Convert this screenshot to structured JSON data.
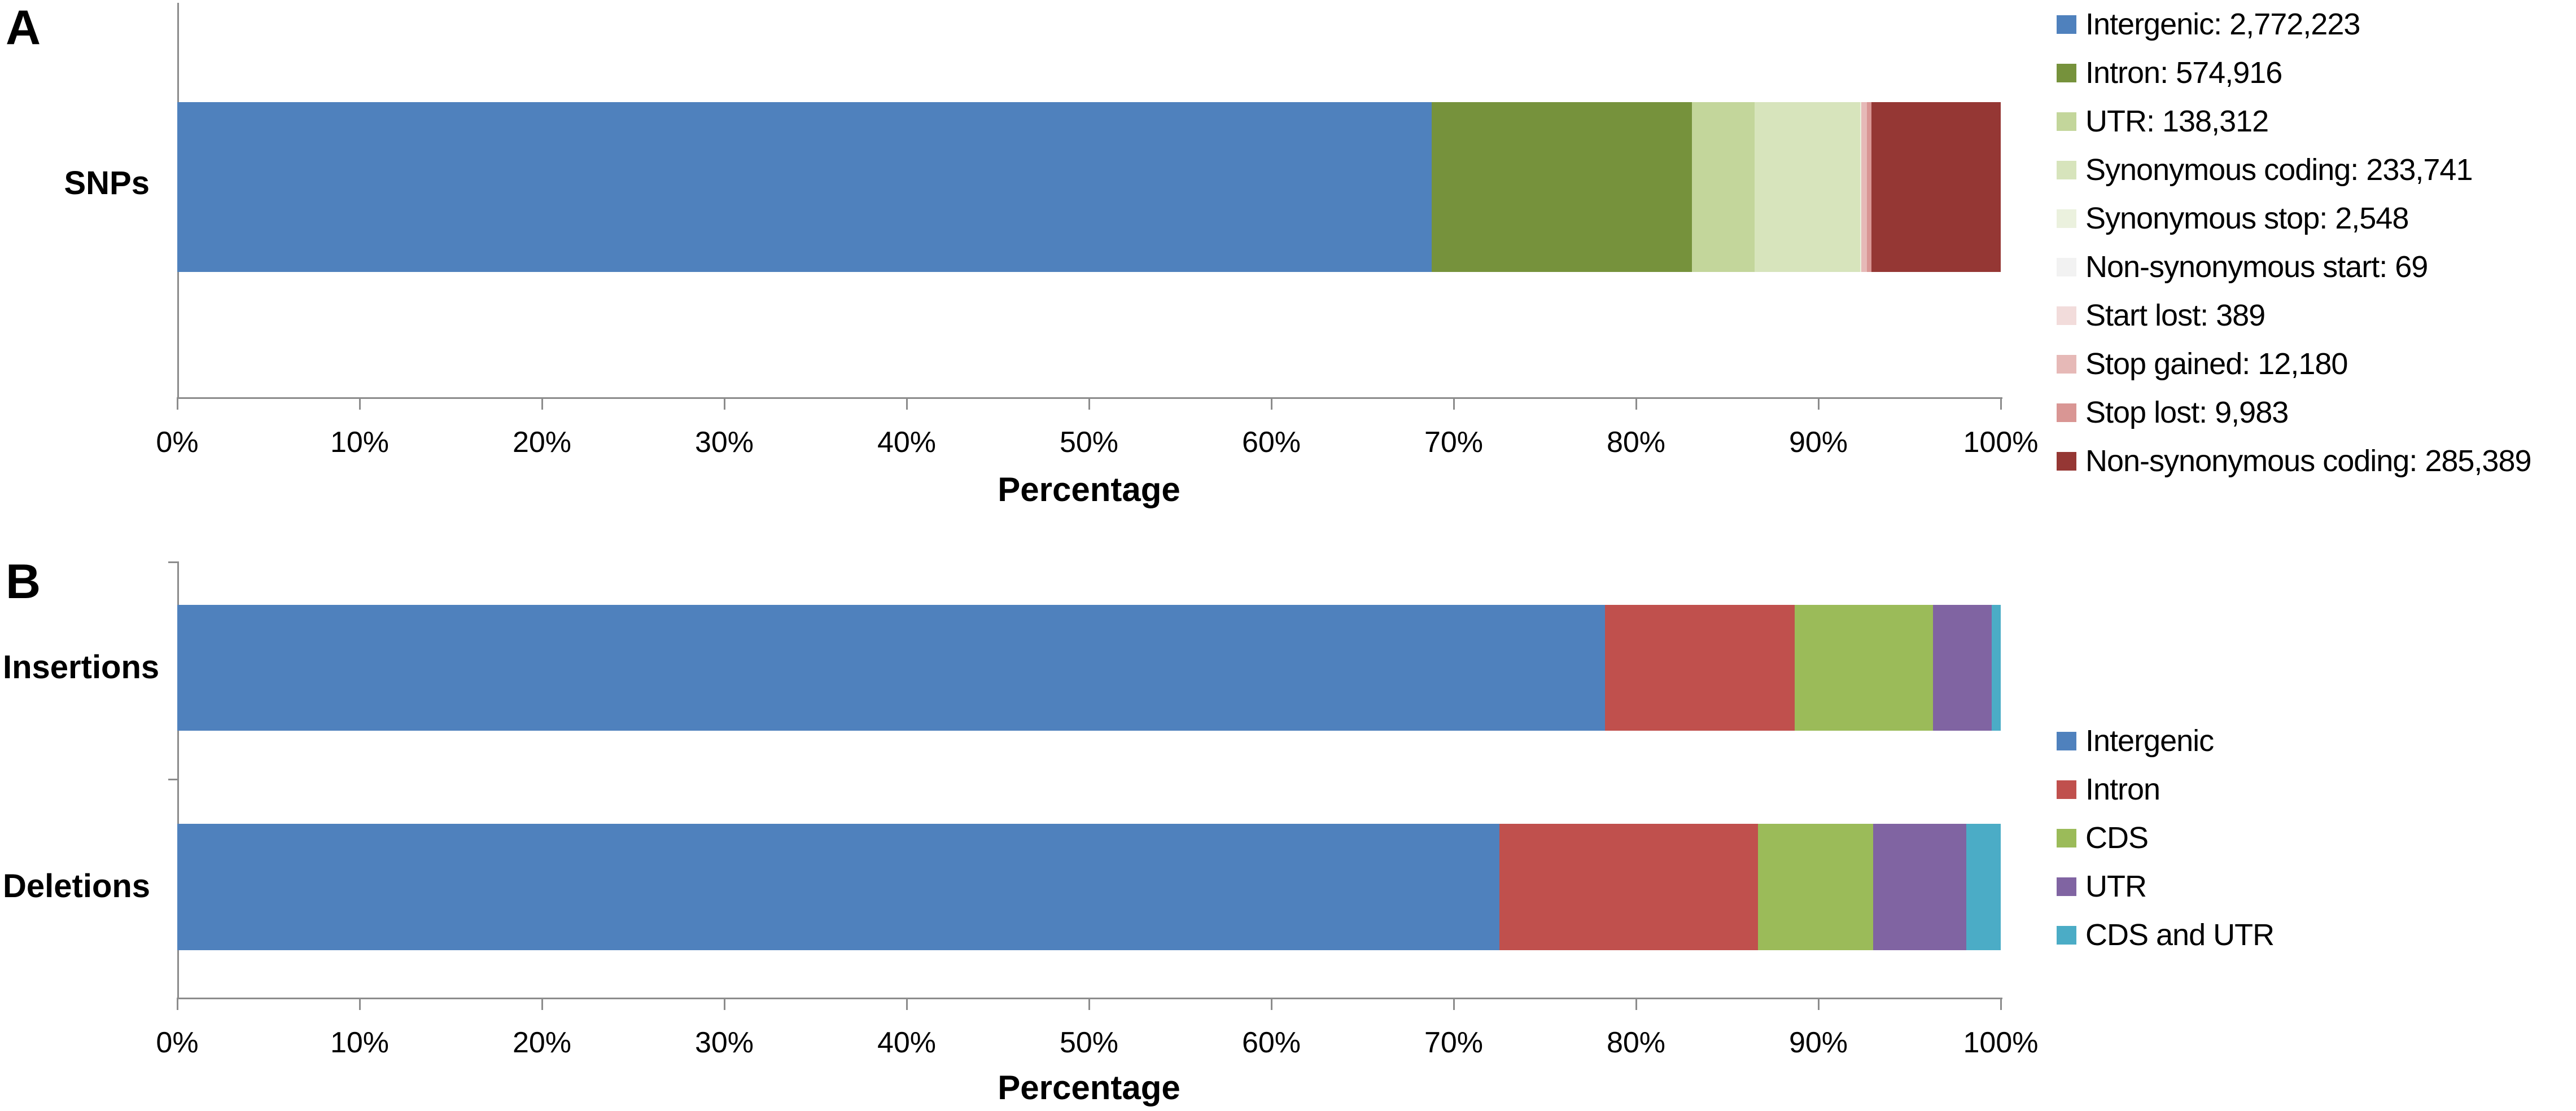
{
  "panels": [
    {
      "letter": "A",
      "rows": [
        "SNPs"
      ],
      "xlabel": "Percentage"
    },
    {
      "letter": "B",
      "rows": [
        "Insertions",
        "Deletions"
      ],
      "xlabel": "Percentage"
    }
  ],
  "chart_data": [
    {
      "type": "bar",
      "orientation": "horizontal",
      "stacked": true,
      "panel": "A",
      "categories": [
        "SNPs"
      ],
      "xlabel": "Percentage",
      "x_tick_labels": [
        "0%",
        "10%",
        "20%",
        "30%",
        "40%",
        "50%",
        "60%",
        "70%",
        "80%",
        "90%",
        "100%"
      ],
      "xlim_percent": [
        0,
        100
      ],
      "grid": false,
      "legend_position": "right",
      "series": [
        {
          "name": "Intergenic",
          "count": 2772223,
          "color": "#4F81BD",
          "values_percent": [
            68.79
          ]
        },
        {
          "name": "Intron",
          "count": 574916,
          "color": "#76923C",
          "values_percent": [
            14.27
          ]
        },
        {
          "name": "UTR",
          "count": 138312,
          "color": "#C3D69B",
          "values_percent": [
            3.43
          ]
        },
        {
          "name": "Synonymous coding",
          "count": 233741,
          "color": "#D7E4BC",
          "values_percent": [
            5.8
          ]
        },
        {
          "name": "Synonymous stop",
          "count": 2548,
          "color": "#EBF1DE",
          "values_percent": [
            0.063
          ]
        },
        {
          "name": "Non-synonymous start",
          "count": 69,
          "color": "#F2F2F2",
          "values_percent": [
            0.002
          ]
        },
        {
          "name": "Start lost",
          "count": 389,
          "color": "#F2DCDB",
          "values_percent": [
            0.01
          ]
        },
        {
          "name": "Stop gained",
          "count": 12180,
          "color": "#E6B9B7",
          "values_percent": [
            0.302
          ]
        },
        {
          "name": "Stop lost",
          "count": 9983,
          "color": "#D99694",
          "values_percent": [
            0.248
          ]
        },
        {
          "name": "Non-synonymous coding",
          "count": 285389,
          "color": "#953734",
          "values_percent": [
            7.08
          ]
        }
      ],
      "legend": [
        {
          "label": "Intergenic: 2,772,223",
          "color": "#4F81BD"
        },
        {
          "label": "Intron: 574,916",
          "color": "#76923C"
        },
        {
          "label": "UTR: 138,312",
          "color": "#C3D69B"
        },
        {
          "label": "Synonymous coding: 233,741",
          "color": "#D7E4BC"
        },
        {
          "label": "Synonymous stop: 2,548",
          "color": "#EBF1DE"
        },
        {
          "label": "Non-synonymous start: 69",
          "color": "#F2F2F2"
        },
        {
          "label": "Start lost: 389",
          "color": "#F2DCDB"
        },
        {
          "label": "Stop gained: 12,180",
          "color": "#E6B9B7"
        },
        {
          "label": "Stop lost: 9,983",
          "color": "#D99694"
        },
        {
          "label": "Non-synonymous coding: 285,389",
          "color": "#953734"
        }
      ]
    },
    {
      "type": "bar",
      "orientation": "horizontal",
      "stacked": true,
      "panel": "B",
      "categories": [
        "Insertions",
        "Deletions"
      ],
      "xlabel": "Percentage",
      "x_tick_labels": [
        "0%",
        "10%",
        "20%",
        "30%",
        "40%",
        "50%",
        "60%",
        "70%",
        "80%",
        "90%",
        "100%"
      ],
      "xlim_percent": [
        0,
        100
      ],
      "grid": false,
      "legend_position": "right",
      "series": [
        {
          "name": "Intergenic",
          "color": "#4F81BD",
          "values_percent": [
            78.3,
            72.5
          ]
        },
        {
          "name": "Intron",
          "color": "#C0504D",
          "values_percent": [
            10.4,
            14.2
          ]
        },
        {
          "name": "CDS",
          "color": "#9BBB59",
          "values_percent": [
            7.6,
            6.3
          ]
        },
        {
          "name": "UTR",
          "color": "#8064A2",
          "values_percent": [
            3.2,
            5.1
          ]
        },
        {
          "name": "CDS and UTR",
          "color": "#4BACC6",
          "values_percent": [
            0.5,
            1.9
          ]
        }
      ],
      "legend": [
        {
          "label": "Intergenic",
          "color": "#4F81BD"
        },
        {
          "label": "Intron",
          "color": "#C0504D"
        },
        {
          "label": "CDS",
          "color": "#9BBB59"
        },
        {
          "label": "UTR",
          "color": "#8064A2"
        },
        {
          "label": "CDS and UTR",
          "color": "#4BACC6"
        }
      ]
    }
  ]
}
